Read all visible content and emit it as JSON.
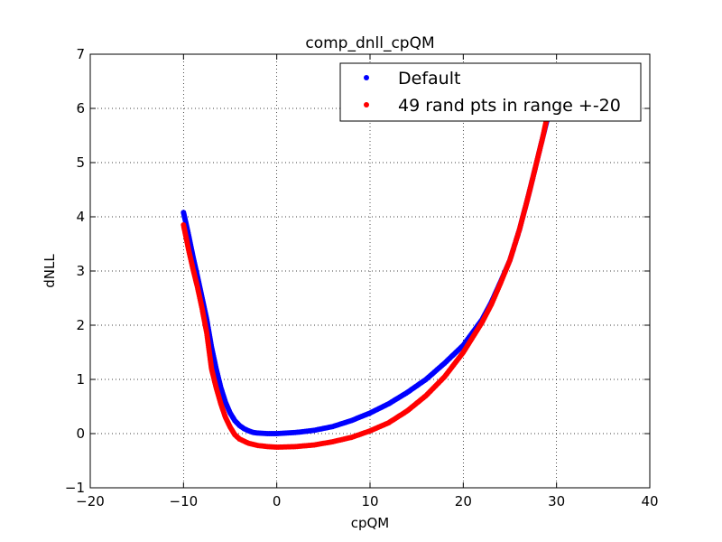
{
  "chart_data": {
    "type": "scatter",
    "title": "comp_dnll_cpQM",
    "xlabel": "cpQM",
    "ylabel": "dNLL",
    "xlim": [
      -20,
      40
    ],
    "ylim": [
      -1,
      7
    ],
    "xticks": [
      -20,
      -10,
      0,
      10,
      20,
      30,
      40
    ],
    "xtick_labels": [
      "−20",
      "−10",
      "0",
      "10",
      "20",
      "30",
      "40"
    ],
    "yticks": [
      -1,
      0,
      1,
      2,
      3,
      4,
      5,
      6,
      7
    ],
    "ytick_labels": [
      "−1",
      "0",
      "1",
      "2",
      "3",
      "4",
      "5",
      "6",
      "7"
    ],
    "grid": true,
    "legend_position": "top-right",
    "series": [
      {
        "name": "Default",
        "color": "#0000ff",
        "points": [
          [
            -10.0,
            4.08
          ],
          [
            -9.8,
            3.93
          ],
          [
            -9.5,
            3.7
          ],
          [
            -9.2,
            3.45
          ],
          [
            -9.0,
            3.28
          ],
          [
            -8.5,
            2.9
          ],
          [
            -8.0,
            2.5
          ],
          [
            -7.5,
            2.1
          ],
          [
            -7.0,
            1.6
          ],
          [
            -6.5,
            1.2
          ],
          [
            -6.0,
            0.85
          ],
          [
            -5.5,
            0.58
          ],
          [
            -5.0,
            0.38
          ],
          [
            -4.5,
            0.24
          ],
          [
            -4.0,
            0.15
          ],
          [
            -3.5,
            0.09
          ],
          [
            -3.0,
            0.05
          ],
          [
            -2.5,
            0.02
          ],
          [
            -2.0,
            0.01
          ],
          [
            -1.0,
            0.0
          ],
          [
            0.0,
            0.0
          ],
          [
            2.0,
            0.02
          ],
          [
            4.0,
            0.06
          ],
          [
            6.0,
            0.13
          ],
          [
            8.0,
            0.24
          ],
          [
            10.0,
            0.38
          ],
          [
            12.0,
            0.55
          ],
          [
            14.0,
            0.76
          ],
          [
            16.0,
            1.0
          ],
          [
            18.0,
            1.3
          ],
          [
            20.0,
            1.63
          ],
          [
            22.0,
            2.1
          ],
          [
            23.0,
            2.42
          ],
          [
            24.0,
            2.8
          ],
          [
            25.0,
            3.2
          ],
          [
            26.0,
            3.75
          ],
          [
            27.0,
            4.4
          ],
          [
            28.0,
            5.1
          ],
          [
            29.0,
            5.8
          ],
          [
            29.2,
            5.95
          ]
        ]
      },
      {
        "name": "49 rand pts in range +-20",
        "color": "#ff0000",
        "points": [
          [
            -10.0,
            3.85
          ],
          [
            -9.7,
            3.6
          ],
          [
            -9.4,
            3.35
          ],
          [
            -9.0,
            3.05
          ],
          [
            -8.5,
            2.7
          ],
          [
            -8.0,
            2.3
          ],
          [
            -7.5,
            1.85
          ],
          [
            -7.0,
            1.2
          ],
          [
            -6.5,
            0.85
          ],
          [
            -6.0,
            0.55
          ],
          [
            -5.5,
            0.3
          ],
          [
            -5.0,
            0.12
          ],
          [
            -4.5,
            -0.02
          ],
          [
            -4.0,
            -0.1
          ],
          [
            -3.0,
            -0.18
          ],
          [
            -2.0,
            -0.22
          ],
          [
            -1.0,
            -0.24
          ],
          [
            0.0,
            -0.25
          ],
          [
            2.0,
            -0.24
          ],
          [
            4.0,
            -0.21
          ],
          [
            6.0,
            -0.15
          ],
          [
            8.0,
            -0.07
          ],
          [
            10.0,
            0.05
          ],
          [
            12.0,
            0.2
          ],
          [
            14.0,
            0.42
          ],
          [
            16.0,
            0.7
          ],
          [
            18.0,
            1.05
          ],
          [
            20.0,
            1.5
          ],
          [
            22.0,
            2.05
          ],
          [
            23.0,
            2.38
          ],
          [
            24.0,
            2.78
          ],
          [
            25.0,
            3.2
          ],
          [
            26.0,
            3.75
          ],
          [
            27.0,
            4.4
          ],
          [
            28.0,
            5.1
          ],
          [
            28.5,
            5.45
          ],
          [
            29.0,
            5.85
          ],
          [
            29.3,
            6.0
          ]
        ]
      }
    ]
  }
}
